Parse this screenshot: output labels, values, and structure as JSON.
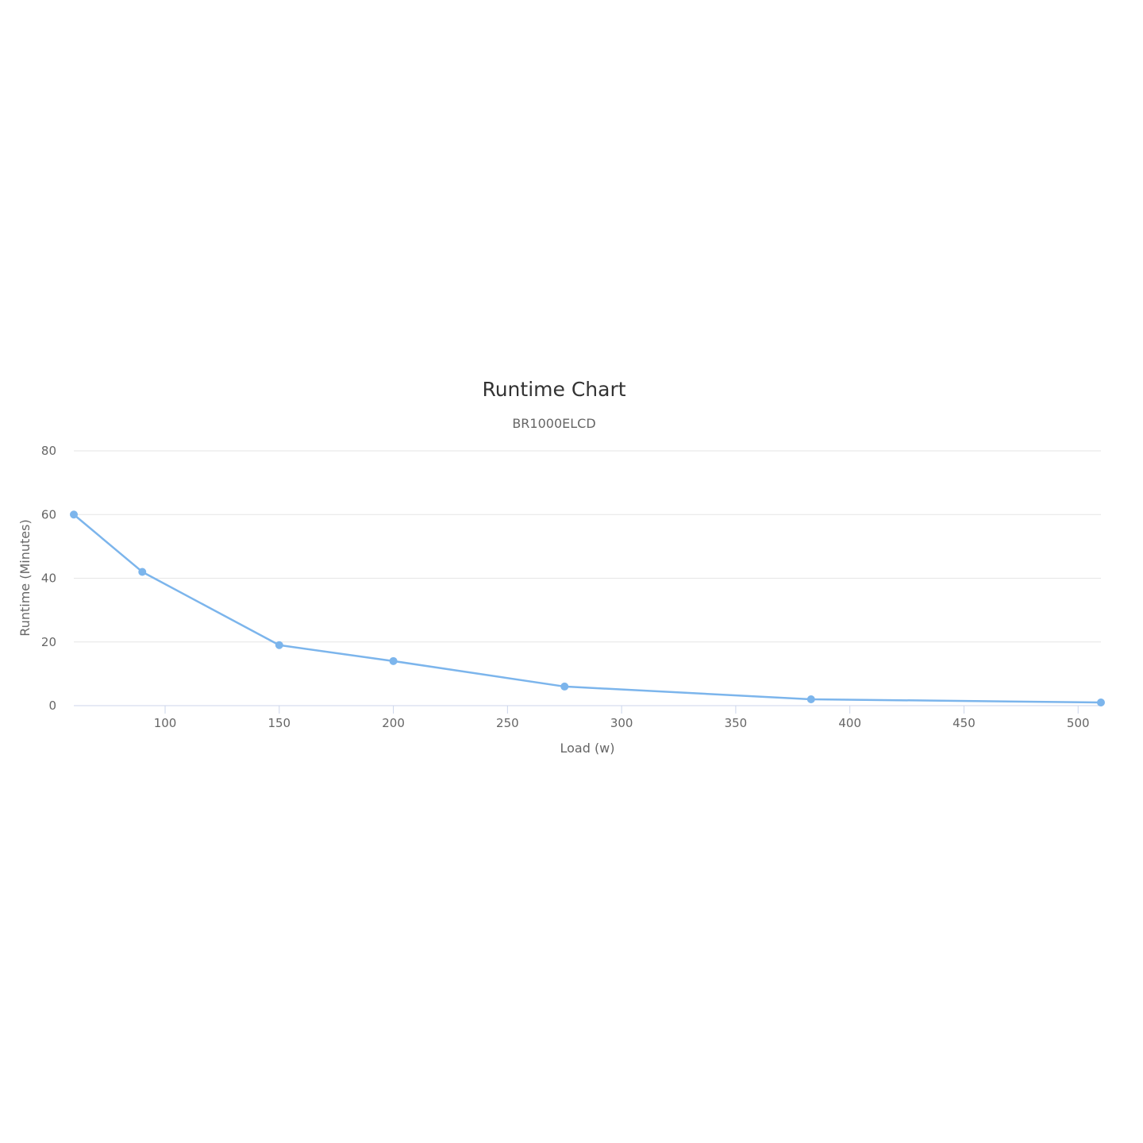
{
  "chart_data": {
    "type": "line",
    "title": "Runtime Chart",
    "subtitle": "BR1000ELCD",
    "xlabel": "Load (w)",
    "ylabel": "Runtime (Minutes)",
    "xlim": [
      60,
      510
    ],
    "ylim": [
      0,
      80
    ],
    "xticks": [
      100,
      150,
      200,
      250,
      300,
      350,
      400,
      450,
      500
    ],
    "yticks": [
      0,
      20,
      40,
      60,
      80
    ],
    "grid": true,
    "legend": "none",
    "color": "#7cb5ec",
    "x": [
      60,
      90,
      150,
      200,
      275,
      383,
      510
    ],
    "y": [
      60,
      42,
      19,
      14,
      6,
      2,
      1
    ]
  }
}
